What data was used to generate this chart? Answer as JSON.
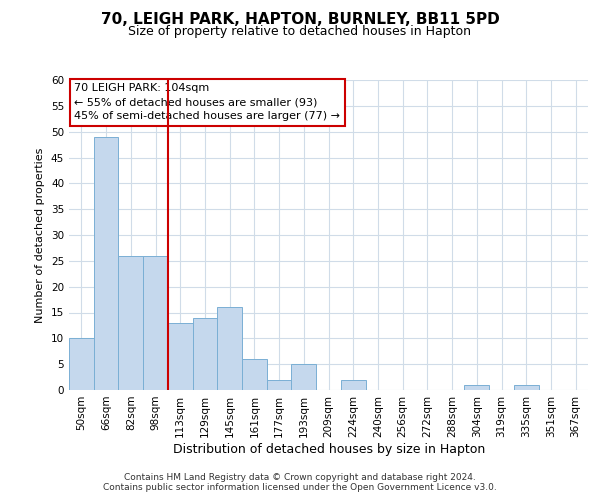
{
  "title1": "70, LEIGH PARK, HAPTON, BURNLEY, BB11 5PD",
  "title2": "Size of property relative to detached houses in Hapton",
  "xlabel": "Distribution of detached houses by size in Hapton",
  "ylabel": "Number of detached properties",
  "categories": [
    "50sqm",
    "66sqm",
    "82sqm",
    "98sqm",
    "113sqm",
    "129sqm",
    "145sqm",
    "161sqm",
    "177sqm",
    "193sqm",
    "209sqm",
    "224sqm",
    "240sqm",
    "256sqm",
    "272sqm",
    "288sqm",
    "304sqm",
    "319sqm",
    "335sqm",
    "351sqm",
    "367sqm"
  ],
  "values": [
    10,
    49,
    26,
    26,
    13,
    14,
    16,
    6,
    2,
    5,
    0,
    2,
    0,
    0,
    0,
    0,
    1,
    0,
    1,
    0,
    0
  ],
  "bar_color": "#c5d8ed",
  "bar_edge_color": "#7aafd4",
  "annotation_line1": "70 LEIGH PARK: 104sqm",
  "annotation_line2": "← 55% of detached houses are smaller (93)",
  "annotation_line3": "45% of semi-detached houses are larger (77) →",
  "annotation_box_color": "#ffffff",
  "annotation_box_edge_color": "#cc0000",
  "vline_x": 3.5,
  "vline_color": "#cc0000",
  "ylim": [
    0,
    60
  ],
  "yticks": [
    0,
    5,
    10,
    15,
    20,
    25,
    30,
    35,
    40,
    45,
    50,
    55,
    60
  ],
  "footer1": "Contains HM Land Registry data © Crown copyright and database right 2024.",
  "footer2": "Contains public sector information licensed under the Open Government Licence v3.0.",
  "background_color": "#ffffff",
  "grid_color": "#d0dce8",
  "title1_fontsize": 11,
  "title2_fontsize": 9,
  "ylabel_fontsize": 8,
  "xlabel_fontsize": 9,
  "tick_fontsize": 7.5,
  "annotation_fontsize": 8,
  "footer_fontsize": 6.5
}
